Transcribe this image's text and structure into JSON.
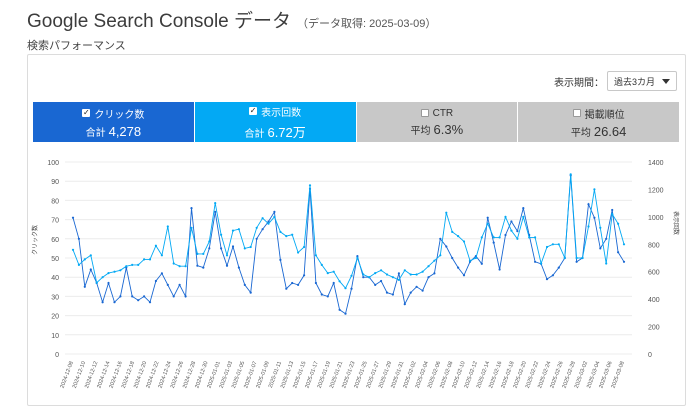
{
  "header": {
    "title": "Google Search Console データ",
    "subtitle": "（データ取得: 2025-03-09）"
  },
  "section": {
    "title": "検索パフォーマンス"
  },
  "period": {
    "label": "表示期間：",
    "value": "過去3カ月"
  },
  "tabs": [
    {
      "label": "クリック数",
      "stat_label": "合計",
      "value": "4,278",
      "checked": true,
      "color": "#1967d2"
    },
    {
      "label": "表示回数",
      "stat_label": "合計",
      "value": "6.72万",
      "checked": true,
      "color": "#03a9f4"
    },
    {
      "label": "CTR",
      "stat_label": "平均",
      "value": "6.3%",
      "checked": false,
      "color": "#c8c8c8"
    },
    {
      "label": "掲載順位",
      "stat_label": "平均",
      "value": "26.64",
      "checked": false,
      "color": "#c8c8c8"
    }
  ],
  "chart_data": {
    "type": "line",
    "ylabel_left": "クリック数",
    "ylabel_right": "表示回数",
    "ylim_left": [
      0,
      100
    ],
    "ylim_right": [
      0,
      1400
    ],
    "yticks_left": [
      "0",
      "10",
      "20",
      "30",
      "40",
      "50",
      "60",
      "70",
      "80",
      "90",
      "100"
    ],
    "yticks_right": [
      "0",
      "200",
      "400",
      "600",
      "800",
      "1000",
      "1200",
      "1400"
    ],
    "x_tick_labels": [
      "2024-12-08",
      "2024-12-10",
      "2024-12-12",
      "2024-12-14",
      "2024-12-16",
      "2024-12-18",
      "2024-12-20",
      "2024-12-22",
      "2024-12-24",
      "2024-12-26",
      "2024-12-28",
      "2024-12-30",
      "2025-01-01",
      "2025-01-03",
      "2025-01-05",
      "2025-01-07",
      "2025-01-09",
      "2025-01-11",
      "2025-01-13",
      "2025-01-15",
      "2025-01-17",
      "2025-01-19",
      "2025-01-21",
      "2025-01-23",
      "2025-01-25",
      "2025-01-27",
      "2025-01-29",
      "2025-01-31",
      "2025-02-02",
      "2025-02-04",
      "2025-02-06",
      "2025-02-08",
      "2025-02-10",
      "2025-02-12",
      "2025-02-14",
      "2025-02-16",
      "2025-02-18",
      "2025-02-20",
      "2025-02-22",
      "2025-02-24",
      "2025-02-26",
      "2025-02-28",
      "2025-03-02",
      "2025-03-04",
      "2025-03-06",
      "2025-03-08"
    ],
    "series": [
      {
        "name": "クリック数",
        "axis": "left",
        "color": "#1967d2",
        "values": [
          71,
          60,
          35,
          44,
          37,
          27,
          37,
          27,
          30,
          45,
          30,
          28,
          30,
          27,
          38,
          42,
          36,
          30,
          36,
          30,
          76,
          46,
          45,
          55,
          74,
          55,
          46,
          56,
          45,
          36,
          32,
          60,
          65,
          69,
          74,
          49,
          34,
          37,
          36,
          41,
          86,
          37,
          31,
          30,
          37,
          23,
          21,
          34,
          51,
          40,
          40,
          36,
          38,
          32,
          31,
          42,
          26,
          32,
          35,
          33,
          40,
          42,
          60,
          56,
          50,
          45,
          41,
          48,
          51,
          47,
          71,
          58,
          44,
          62,
          69,
          64,
          76,
          62,
          48,
          47,
          39,
          41,
          45,
          50,
          93,
          48,
          50,
          78,
          71,
          55,
          60,
          75,
          53,
          48
        ]
      },
      {
        "name": "表示回数",
        "axis": "right",
        "color": "#03a9f4",
        "values": [
          760,
          650,
          690,
          720,
          520,
          560,
          590,
          600,
          610,
          640,
          650,
          650,
          690,
          690,
          790,
          720,
          930,
          660,
          640,
          640,
          920,
          730,
          730,
          820,
          1100,
          870,
          720,
          900,
          910,
          770,
          780,
          920,
          990,
          950,
          1000,
          890,
          860,
          870,
          740,
          780,
          1230,
          720,
          650,
          590,
          600,
          530,
          480,
          570,
          700,
          580,
          560,
          590,
          610,
          580,
          560,
          540,
          610,
          580,
          580,
          600,
          640,
          680,
          720,
          1030,
          890,
          860,
          820,
          680,
          700,
          850,
          950,
          850,
          850,
          1000,
          900,
          840,
          1000,
          850,
          850,
          660,
          780,
          800,
          800,
          700,
          1310,
          700,
          700,
          930,
          1200,
          920,
          660,
          1020,
          950,
          800
        ]
      }
    ]
  }
}
